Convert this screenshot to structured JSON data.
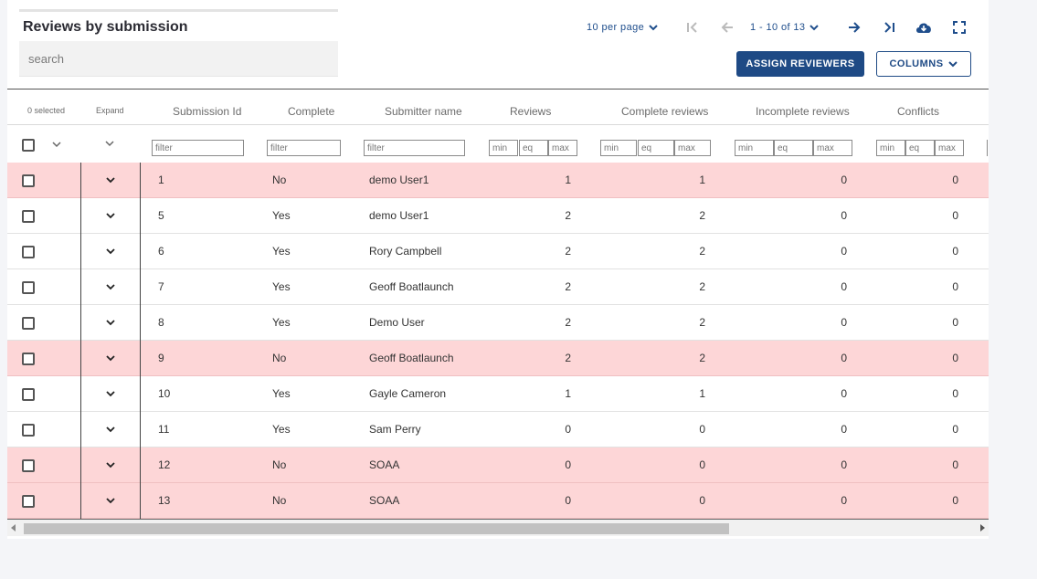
{
  "header": {
    "title": "Reviews by submission",
    "search_placeholder": "search"
  },
  "pagination": {
    "per_page_label": "10 per page",
    "range_label": "1 - 10 of 13"
  },
  "actions": {
    "assign_label": "ASSIGN REVIEWERS",
    "columns_label": "COLUMNS"
  },
  "table": {
    "selected_label": "0 selected",
    "expand_label": "Expand",
    "columns": [
      "Submission Id",
      "Complete",
      "Submitter name",
      "Reviews",
      "Complete reviews",
      "Incomplete reviews",
      "Conflicts"
    ],
    "filters": {
      "text_placeholder": "filter",
      "min_placeholder": "min",
      "eq_placeholder": "eq",
      "max_placeholder": "max"
    },
    "rows": [
      {
        "id": "1",
        "complete": "No",
        "name": "demo User1",
        "reviews": "1",
        "complete_reviews": "1",
        "incomplete_reviews": "0",
        "conflicts": "0"
      },
      {
        "id": "5",
        "complete": "Yes",
        "name": "demo User1",
        "reviews": "2",
        "complete_reviews": "2",
        "incomplete_reviews": "0",
        "conflicts": "0"
      },
      {
        "id": "6",
        "complete": "Yes",
        "name": "Rory Campbell",
        "reviews": "2",
        "complete_reviews": "2",
        "incomplete_reviews": "0",
        "conflicts": "0"
      },
      {
        "id": "7",
        "complete": "Yes",
        "name": "Geoff Boatlaunch",
        "reviews": "2",
        "complete_reviews": "2",
        "incomplete_reviews": "0",
        "conflicts": "0"
      },
      {
        "id": "8",
        "complete": "Yes",
        "name": "Demo User",
        "reviews": "2",
        "complete_reviews": "2",
        "incomplete_reviews": "0",
        "conflicts": "0"
      },
      {
        "id": "9",
        "complete": "No",
        "name": "Geoff Boatlaunch",
        "reviews": "2",
        "complete_reviews": "2",
        "incomplete_reviews": "0",
        "conflicts": "0"
      },
      {
        "id": "10",
        "complete": "Yes",
        "name": "Gayle Cameron",
        "reviews": "1",
        "complete_reviews": "1",
        "incomplete_reviews": "0",
        "conflicts": "0"
      },
      {
        "id": "11",
        "complete": "Yes",
        "name": "Sam Perry",
        "reviews": "0",
        "complete_reviews": "0",
        "incomplete_reviews": "0",
        "conflicts": "0"
      },
      {
        "id": "12",
        "complete": "No",
        "name": "SOAA",
        "reviews": "0",
        "complete_reviews": "0",
        "incomplete_reviews": "0",
        "conflicts": "0"
      },
      {
        "id": "13",
        "complete": "No",
        "name": "SOAA",
        "reviews": "0",
        "complete_reviews": "0",
        "incomplete_reviews": "0",
        "conflicts": "0"
      }
    ]
  },
  "colors": {
    "accent": "#1e4a85",
    "incomplete_row": "#fdd6d7"
  },
  "icons": [
    "chevron-down-icon",
    "first-page-icon",
    "prev-page-icon",
    "next-page-icon",
    "last-page-icon",
    "cloud-download-icon",
    "fullscreen-icon"
  ]
}
